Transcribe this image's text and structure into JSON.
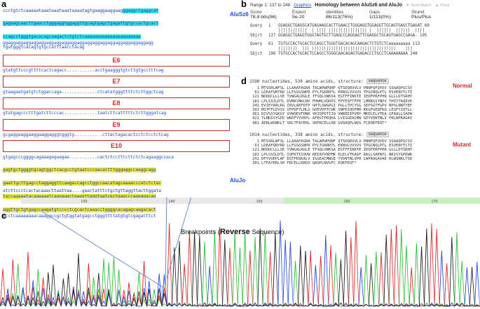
{
  "panels": {
    "a": "a",
    "b": "b",
    "c": "c",
    "d": "d"
  },
  "panel_a": {
    "top_lines": [
      "ccctgtctcaaaaataaataaataaataaaatagtgaaggaaggaag",
      "gagaagcaacttgaacctgggaggtggaggttgcagtgagctgagattgtgccactgcact",
      "ccagcctgggtgacacagcaagactctgtctcaaaaaaaaaaaaaaaaaaaaaa",
      "ggaggaggaggaggaggaggaggaggaggaggaggaggaggaggaggaggaggaggagg"
    ],
    "cyan_line1_tail": "ggaggctgaggcat",
    "alusz6_label": "AluSz6",
    "pre_e6": "tgatgggtcacagtgtgccatttaacctacag",
    "exons": [
      {
        "label": "E6",
        "after": "gtatgttcccgttttcactcagacc...........acctgaagggtgtcttgtgcctttcag"
      },
      {
        "label": "E7",
        "after": "gtaagaatgatgtctggaccaga..............ctcatatgggttttctcttggctcag"
      },
      {
        "label": "E8",
        "after": "gtatgagccctttgatcttcccac.............taatcttcatttttctcttgggatcag"
      },
      {
        "label": "E9",
        "after": "gcgaggaaggaaggaaggagggtgggtg...........cttactagacactcctctcctctcag"
      },
      {
        "label": "E10",
        "after": ""
      }
    ],
    "aluj_lines": [
      "gtgagcccggggcagaaagagaagaa...........cactctcctttcttctctcagaaggccaca",
      "gagtgctggggtgcagtggctcacgcctgtaatcccaacactttgggaggccaaggcagg",
      "gaattgcttgagcctaggaggttcaagaccagcctggccaacatagcaaaacccatctctac",
      "taccaaaaatacaaaaaatcaggaggctgaggttgggtgatcgctgagcccaggaggcag",
      "aggttgctgtgagccaagatgtcccctcgcactcaaacctggggcacagagcaagacact",
      "gcctcaaaaaaaacaaaggccgctgtggtatgagcctgggttttatgtgtcgagatttct"
    ],
    "aluj_label": "AluJo",
    "last_line": "atcttccctcactacaaacttaattaa....gaactatttctgctgttaggttacttggata"
  },
  "panel_b": {
    "range_text": "Range 1: 137 to 248",
    "graphics_link": "Graphics",
    "title": "Homology between AluSz6 and AluJo",
    "next_match": "▼ Next Match",
    "prev_match": "▲ Previ",
    "stats_headers": [
      "Score",
      "Expect",
      "Identities",
      "Gaps",
      "Strand"
    ],
    "stats_values": [
      "78.8 bits(86)",
      "5e-20",
      "86/113(76%)",
      "1/113(0%)",
      "Plus/Plus"
    ],
    "alignment": [
      [
        "Query",
        "1",
        "GGAGGCTGAGGCATGAGAAGCACTTGAACCTGGGAGGTGGAGGTTGCAGTGAGCTGAGAT",
        "60"
      ],
      [
        "",
        "",
        "||||||||||||  | |||| |||||||||||||||| |  ||||||  ||||||  ||||",
        ""
      ],
      [
        "Sbjct",
        "137",
        "GGAGGCTGAGGTGGGTAGTGCTTGAGCCCAGGAGTTCGAGGCTGCAGTGAGCCGAGA-",
        "195"
      ],
      [
        "Query",
        "61",
        "TGTGCCACTGCACTCCAGCCTGGGTGACACAGCAAGACTCTGTCTCaaaaaaaaa",
        "113"
      ],
      [
        "",
        "",
        "||||||||  ||| |||||||||||||||||||||||||||||||||||    |||",
        ""
      ],
      [
        "Sbjct",
        "196",
        "TGTGCCACTGCACTCCAGCCTGGGCAACAGAGTGAGACCCTGCCTCAAAAAAAA",
        "248"
      ]
    ]
  },
  "panel_c": {
    "title_prefix": "Breakpoints (",
    "title_bold": "Reverse",
    "title_suffix": " Sequence)",
    "ruler_ticks": [
      "130",
      "140",
      "150",
      "160",
      "170"
    ]
  },
  "panel_d": {
    "normal_header": "1590 nucleotides, 530 amino acids, structure:",
    "normal_label": "Normal",
    "mutant_header": "1014 nucleotides, 338 amino acids, structure:",
    "mutant_label": "Mutant",
    "sequence_btn": "sequence",
    "normal_lines": [
      [
        "1",
        "MTSSRLWFSL LLAAAFAGRA TALWPWPQNF QTSDQRVVLV PNNFQFQYDV SSAAQPGCSV"
      ],
      [
        "61",
        "LDEAFQRYRD LLFGSGSWPR PYLTGKRHTL EKNVLVVSVV TPGCNQLPTL ESVENYTLTI"
      ],
      [
        "121",
        "NDDQCLLLSE TVWGALRGLE TFSQLVWKSA EGTFFINKTE IEDFPRFPHR GLLLDTSRHY"
      ],
      [
        "181",
        "LPLSSILDTL DVMAYNKLNV FHWHLVDDPS FPYESFTFPE LMRKGSYNPV THIYTAQDVK"
      ],
      [
        "241",
        "EVIEYARLRG IRVLAEFDTP GHTLSWGPGI PGLLTPCYSG SEPSGTFGPV NPSLNNTYEF"
      ],
      [
        "301",
        "MSTFFLEVSS VFPDFYLHLG GDEVDFTCWK SNPEIQDFMR KKGFGEDFKQ LESFYIQTLL"
      ],
      [
        "361",
        "DIVSSYGKGY VVWQEVFDNK VKIQPDTIIQ VWREDIPVNY MKELELVTKA GFRALLSAPW"
      ],
      [
        "421",
        "YLNRISYGPD WKDFYVVEPL AFEGTPEQKA LVIGGEACMW GEYVDNTNLV PRLWPRAGAV"
      ],
      [
        "481",
        "AERLWSNKLT SDLTFAYERL SHFRCELLRR GVQAQPLNVG FCEQEFEQT*",
        ""
      ]
    ],
    "mutant_lines": [
      [
        "1",
        "MTSSRLWFSL LLAAAFAGRA TALWPWPQNF QTSDQRVVLV PNNFQFQYDV SSAAQPGCSV"
      ],
      [
        "61",
        "LDEAFQRYRD LLFGSGSWPR PYLTGKRHTL EKNVLVVSVV TPGCNQLPTL ESVENYTLTI"
      ],
      [
        "121",
        "NDDQCLLLSE TVWGALRGLE TFSQLVWKSA EGTFFINKTE IEDFPRFPHR GLLLDTSRHY"
      ],
      [
        "181",
        "LPLSSILDTL IQPDTIIQVW REDIPVNYMK ELELVTKAGF RALLSAPWYL NRISYGPDWK"
      ],
      [
        "241",
        "DFYVVEPLAF EGTPEQKALV IGGEACMWGE YVDNTNLVPR LWPRAGAVAE RLWSNKLTSD"
      ],
      [
        "301",
        "LTFAYERLSH FRCELLRRGV QAQPLNVGFC EQEFEQT*",
        ""
      ]
    ]
  },
  "colors": {
    "cyan": "#38e6e6",
    "yellow": "#f2ec2c",
    "exon_red": "#d42a2a",
    "blue_text": "#1f4fcc",
    "trace_green": "#2bbf3a",
    "trace_red": "#e02828",
    "trace_blue": "#2a47e0",
    "trace_black": "#222222"
  }
}
